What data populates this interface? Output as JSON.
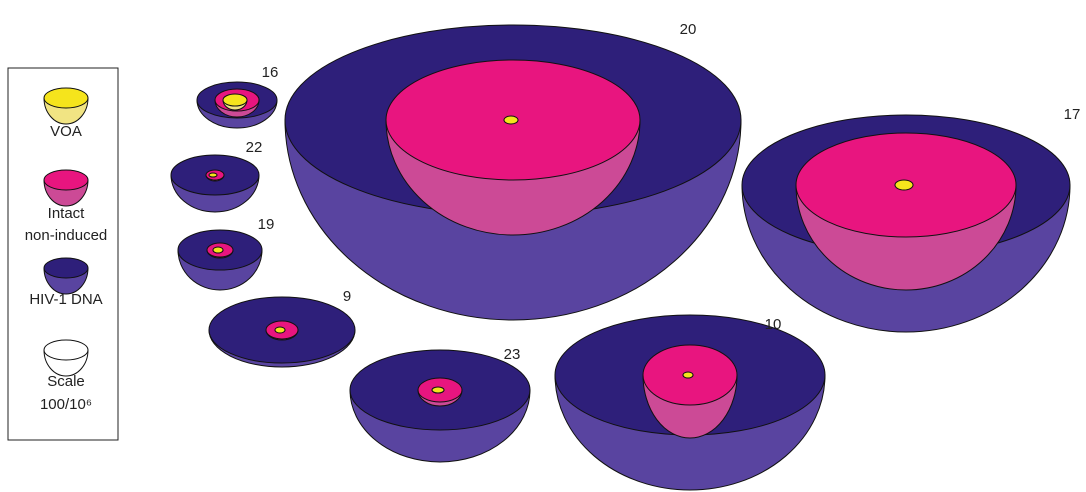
{
  "legend": {
    "items": [
      {
        "lines": [
          "VOA"
        ]
      },
      {
        "lines": [
          "Intact",
          "non-induced"
        ]
      },
      {
        "lines": [
          "HIV-1 DNA"
        ]
      },
      {
        "lines": [
          "Scale",
          "100/10⁶"
        ]
      }
    ]
  },
  "bowls": [
    {
      "label": "20"
    },
    {
      "label": "17"
    },
    {
      "label": "16"
    },
    {
      "label": "22"
    },
    {
      "label": "19"
    },
    {
      "label": "9"
    },
    {
      "label": "23"
    },
    {
      "label": "10"
    }
  ]
}
